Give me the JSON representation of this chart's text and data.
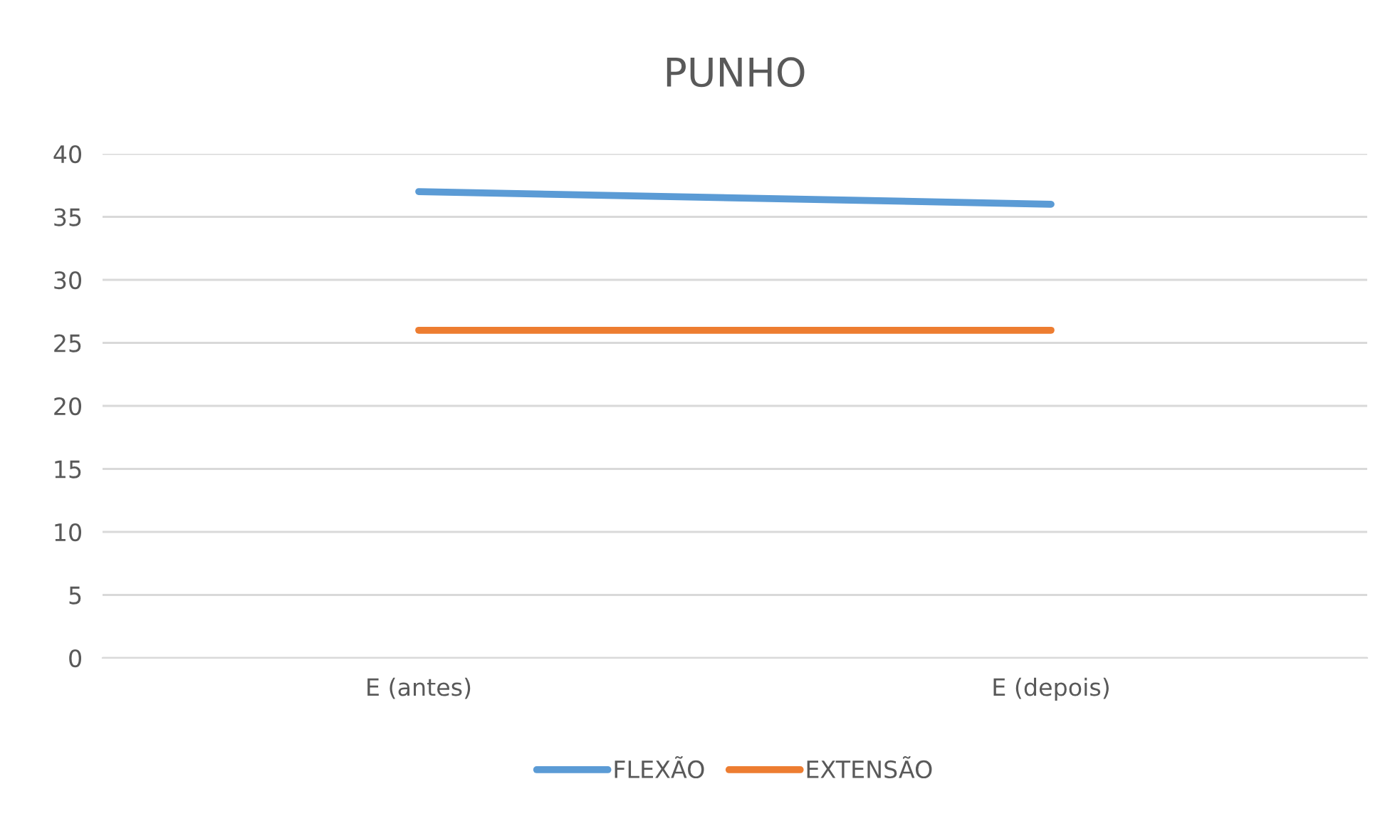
{
  "chart_data": {
    "type": "line",
    "title": "PUNHO",
    "categories": [
      "E (antes)",
      "E (depois)"
    ],
    "series": [
      {
        "name": "FLEXÃO",
        "color": "#5b9bd5",
        "values": [
          37,
          36
        ]
      },
      {
        "name": "EXTENSÃO",
        "color": "#ed7d31",
        "values": [
          26,
          26
        ]
      }
    ],
    "ylim": [
      0,
      40
    ],
    "yticks": [
      0,
      5,
      10,
      15,
      20,
      25,
      30,
      35,
      40
    ],
    "grid": "y",
    "legend": "bottom",
    "marker": "none",
    "line_style": "solid"
  }
}
